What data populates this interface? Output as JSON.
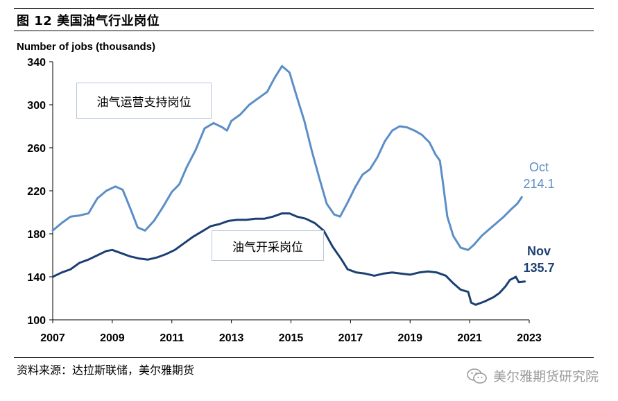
{
  "title": "图 12  美国油气行业岗位",
  "source": "资料来源：达拉斯联储，美尔雅期货",
  "watermark": "美尔雅期货研究院",
  "icons": {
    "watermark_icon": "wechat-icon"
  },
  "colors": {
    "support_series": "#5b8ec7",
    "extraction_series": "#1c3f73",
    "axis": "#000000"
  },
  "chart_data": {
    "type": "line",
    "title": "",
    "ylabel": "Number of jobs (thousands)",
    "xlabel": "",
    "xlim": [
      2007,
      2023
    ],
    "ylim": [
      100,
      340
    ],
    "xticks": [
      "2007",
      "2009",
      "2011",
      "2013",
      "2015",
      "2017",
      "2019",
      "2021",
      "2023"
    ],
    "yticks": [
      "100",
      "140",
      "180",
      "220",
      "260",
      "300",
      "340"
    ],
    "grid": false,
    "series": [
      {
        "name": "油气运营支持岗位",
        "end_label": {
          "month": "Oct",
          "value": "214.1"
        },
        "points": [
          [
            2007.0,
            183
          ],
          [
            2007.3,
            190
          ],
          [
            2007.6,
            196
          ],
          [
            2007.9,
            197
          ],
          [
            2008.2,
            199
          ],
          [
            2008.5,
            213
          ],
          [
            2008.8,
            220
          ],
          [
            2009.1,
            224
          ],
          [
            2009.35,
            221
          ],
          [
            2009.6,
            204
          ],
          [
            2009.85,
            186
          ],
          [
            2010.1,
            183
          ],
          [
            2010.4,
            192
          ],
          [
            2010.7,
            205
          ],
          [
            2011.0,
            219
          ],
          [
            2011.25,
            226
          ],
          [
            2011.5,
            242
          ],
          [
            2011.8,
            258
          ],
          [
            2012.1,
            278
          ],
          [
            2012.4,
            283
          ],
          [
            2012.7,
            279
          ],
          [
            2012.85,
            276
          ],
          [
            2013.0,
            285
          ],
          [
            2013.3,
            291
          ],
          [
            2013.6,
            300
          ],
          [
            2013.9,
            306
          ],
          [
            2014.2,
            312
          ],
          [
            2014.45,
            325
          ],
          [
            2014.7,
            336
          ],
          [
            2014.95,
            330
          ],
          [
            2015.2,
            307
          ],
          [
            2015.45,
            285
          ],
          [
            2015.7,
            257
          ],
          [
            2015.95,
            232
          ],
          [
            2016.2,
            208
          ],
          [
            2016.45,
            198
          ],
          [
            2016.65,
            196
          ],
          [
            2016.9,
            209
          ],
          [
            2017.15,
            223
          ],
          [
            2017.4,
            235
          ],
          [
            2017.65,
            240
          ],
          [
            2017.9,
            251
          ],
          [
            2018.15,
            266
          ],
          [
            2018.4,
            276
          ],
          [
            2018.65,
            280
          ],
          [
            2018.9,
            279
          ],
          [
            2019.15,
            276
          ],
          [
            2019.4,
            272
          ],
          [
            2019.65,
            265
          ],
          [
            2019.85,
            254
          ],
          [
            2020.0,
            248
          ],
          [
            2020.1,
            228
          ],
          [
            2020.25,
            196
          ],
          [
            2020.45,
            178
          ],
          [
            2020.7,
            167
          ],
          [
            2020.95,
            165
          ],
          [
            2021.15,
            170
          ],
          [
            2021.4,
            178
          ],
          [
            2021.65,
            184
          ],
          [
            2021.9,
            190
          ],
          [
            2022.15,
            196
          ],
          [
            2022.4,
            203
          ],
          [
            2022.6,
            208
          ],
          [
            2022.75,
            214.1
          ]
        ]
      },
      {
        "name": "油气开采岗位",
        "end_label": {
          "month": "Nov",
          "value": "135.7"
        },
        "points": [
          [
            2007.0,
            140
          ],
          [
            2007.3,
            144
          ],
          [
            2007.6,
            147
          ],
          [
            2007.9,
            153
          ],
          [
            2008.2,
            156
          ],
          [
            2008.5,
            160
          ],
          [
            2008.8,
            164
          ],
          [
            2009.0,
            165
          ],
          [
            2009.3,
            162
          ],
          [
            2009.6,
            159
          ],
          [
            2009.9,
            157
          ],
          [
            2010.2,
            156
          ],
          [
            2010.5,
            158
          ],
          [
            2010.8,
            161
          ],
          [
            2011.1,
            165
          ],
          [
            2011.4,
            171
          ],
          [
            2011.7,
            177
          ],
          [
            2012.0,
            182
          ],
          [
            2012.3,
            187
          ],
          [
            2012.6,
            189
          ],
          [
            2012.9,
            192
          ],
          [
            2013.2,
            193
          ],
          [
            2013.5,
            193
          ],
          [
            2013.8,
            194
          ],
          [
            2014.1,
            194
          ],
          [
            2014.4,
            196
          ],
          [
            2014.7,
            199
          ],
          [
            2014.95,
            199
          ],
          [
            2015.2,
            196
          ],
          [
            2015.5,
            194
          ],
          [
            2015.8,
            190
          ],
          [
            2016.1,
            183
          ],
          [
            2016.4,
            168
          ],
          [
            2016.7,
            156
          ],
          [
            2016.9,
            147
          ],
          [
            2017.2,
            144
          ],
          [
            2017.5,
            143
          ],
          [
            2017.8,
            141
          ],
          [
            2018.1,
            143
          ],
          [
            2018.4,
            144
          ],
          [
            2018.7,
            143
          ],
          [
            2019.0,
            142
          ],
          [
            2019.3,
            144
          ],
          [
            2019.6,
            145
          ],
          [
            2019.9,
            144
          ],
          [
            2020.2,
            141
          ],
          [
            2020.45,
            134
          ],
          [
            2020.7,
            128
          ],
          [
            2020.95,
            126
          ],
          [
            2021.05,
            116
          ],
          [
            2021.2,
            114
          ],
          [
            2021.5,
            117
          ],
          [
            2021.8,
            121
          ],
          [
            2022.0,
            125
          ],
          [
            2022.2,
            131
          ],
          [
            2022.35,
            137
          ],
          [
            2022.55,
            140
          ],
          [
            2022.65,
            135
          ],
          [
            2022.85,
            135.7
          ]
        ]
      }
    ]
  }
}
